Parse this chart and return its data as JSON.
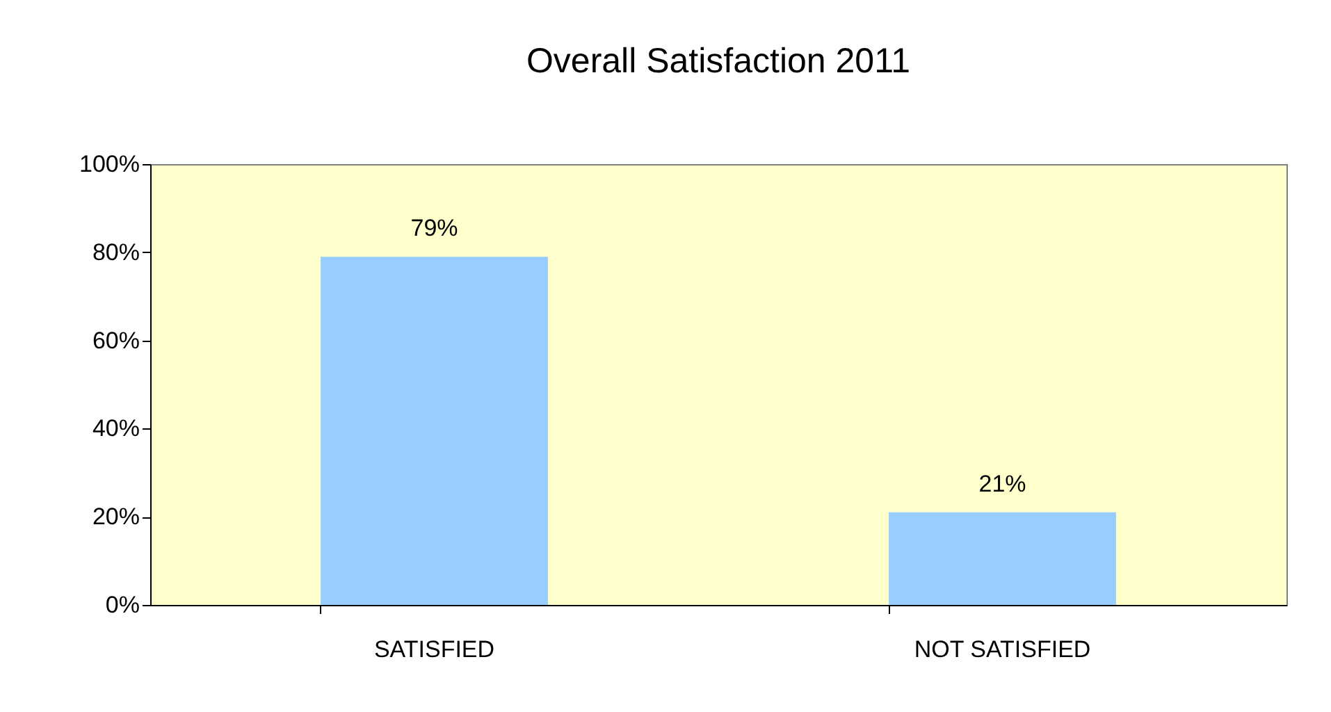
{
  "chart_data": {
    "type": "bar",
    "title": "Overall Satisfaction 2011",
    "categories": [
      "SATISFIED",
      "NOT SATISFIED"
    ],
    "values": [
      79,
      21
    ],
    "value_labels": [
      "79%",
      "21%"
    ],
    "color": "#99ccff",
    "ylim": [
      0,
      100
    ],
    "yticks": [
      {
        "value": 0,
        "label": "0%"
      },
      {
        "value": 20,
        "label": "20%"
      },
      {
        "value": 40,
        "label": "40%"
      },
      {
        "value": 60,
        "label": "60%"
      },
      {
        "value": 80,
        "label": "80%"
      },
      {
        "value": 100,
        "label": "100%"
      }
    ],
    "grid": false
  }
}
